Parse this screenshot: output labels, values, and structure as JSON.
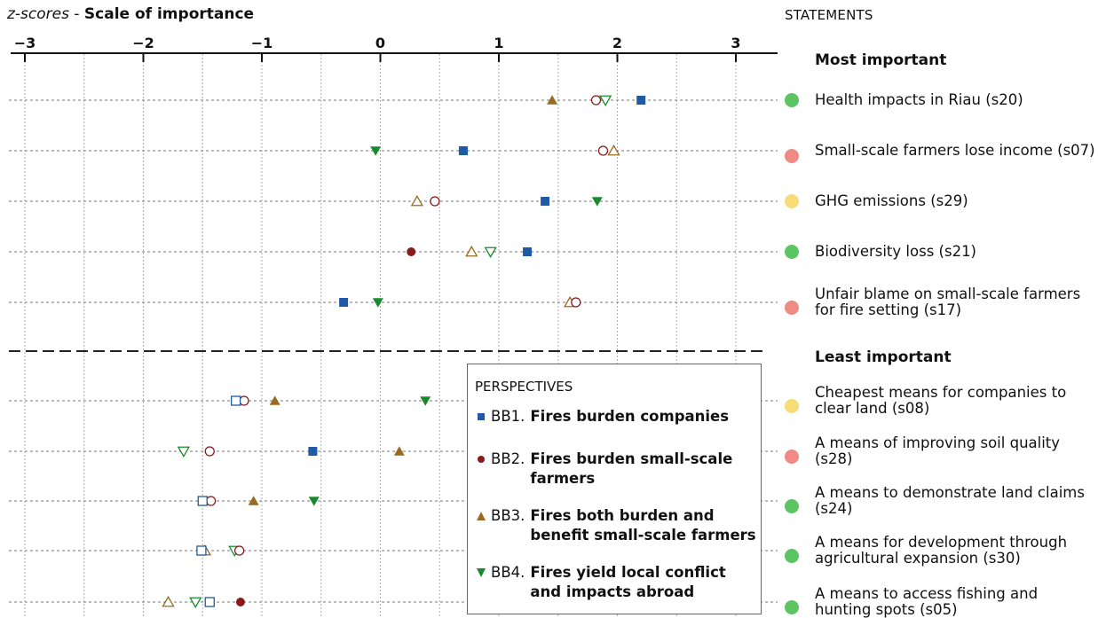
{
  "header": {
    "title_italic": "z-scores",
    "title_sep": " - ",
    "title_bold": "Scale of importance",
    "statements_label": "STATEMENTS"
  },
  "sections": {
    "most": "Most important",
    "least": "Least important"
  },
  "legend": {
    "title": "PERSPECTIVES",
    "items": [
      {
        "code": "BB1.",
        "name": "Fires burden companies",
        "color": "#1f5aa6",
        "marker": "square"
      },
      {
        "code": "BB2.",
        "name": "Fires burden small-scale farmers",
        "color": "#8b1a1a",
        "marker": "circle"
      },
      {
        "code": "BB3.",
        "name": "Fires both burden and benefit small-scale farmers",
        "color": "#9a6a1f",
        "marker": "triangle-up"
      },
      {
        "code": "BB4.",
        "name": "Fires yield local conflict and impacts abroad",
        "color": "#1a8a2e",
        "marker": "triangle-down"
      }
    ]
  },
  "status_colors": {
    "green": "#5cc462",
    "pink": "#f08a84",
    "yellow": "#f7dc78"
  },
  "chart_data": {
    "type": "scatter",
    "xlabel": "z-scores - Scale of importance",
    "xlim": [
      -3.1,
      3.3
    ],
    "ticks": [
      -3,
      -2,
      -1,
      0,
      1,
      2,
      3
    ],
    "tick_labels": [
      "−3",
      "−2",
      "−1",
      "0",
      "1",
      "2",
      "3"
    ],
    "grid": true,
    "legend_position": "bottom-center",
    "statements": [
      {
        "label": "Health impacts in Riau (s20)",
        "group": "most",
        "status": "green",
        "values": {
          "BB1": {
            "v": 2.2,
            "filled": true
          },
          "BB2": {
            "v": 1.82,
            "filled": false
          },
          "BB3": {
            "v": 1.45,
            "filled": true
          },
          "BB4": {
            "v": 1.9,
            "filled": false
          }
        }
      },
      {
        "label": "Small-scale farmers lose income (s07)",
        "group": "most",
        "status": "pink",
        "values": {
          "BB1": {
            "v": 0.7,
            "filled": true
          },
          "BB2": {
            "v": 1.88,
            "filled": false
          },
          "BB3": {
            "v": 1.97,
            "filled": false
          },
          "BB4": {
            "v": -0.04,
            "filled": true
          }
        }
      },
      {
        "label": "GHG emissions (s29)",
        "group": "most",
        "status": "yellow",
        "values": {
          "BB1": {
            "v": 1.39,
            "filled": true
          },
          "BB2": {
            "v": 0.46,
            "filled": false
          },
          "BB3": {
            "v": 0.31,
            "filled": false
          },
          "BB4": {
            "v": 1.83,
            "filled": true
          }
        }
      },
      {
        "label": "Biodiversity loss (s21)",
        "group": "most",
        "status": "green",
        "values": {
          "BB1": {
            "v": 1.24,
            "filled": true
          },
          "BB2": {
            "v": 0.26,
            "filled": true
          },
          "BB3": {
            "v": 0.77,
            "filled": false
          },
          "BB4": {
            "v": 0.93,
            "filled": false
          }
        }
      },
      {
        "label": "Unfair blame on small-scale farmers for fire setting (s17)",
        "group": "most",
        "status": "pink",
        "values": {
          "BB1": {
            "v": -0.31,
            "filled": true
          },
          "BB2": {
            "v": 1.65,
            "filled": false
          },
          "BB3": {
            "v": 1.6,
            "filled": false
          },
          "BB4": {
            "v": -0.02,
            "filled": true
          }
        }
      },
      {
        "label": "Cheapest means for companies to clear land (s08)",
        "group": "least",
        "status": "yellow",
        "values": {
          "BB1": {
            "v": -1.22,
            "filled": false
          },
          "BB2": {
            "v": -1.15,
            "filled": false
          },
          "BB3": {
            "v": -0.89,
            "filled": true
          },
          "BB4": {
            "v": 0.38,
            "filled": true
          }
        }
      },
      {
        "label": "A means of improving soil quality (s28)",
        "group": "least",
        "status": "pink",
        "values": {
          "BB1": {
            "v": -0.57,
            "filled": true
          },
          "BB2": {
            "v": -1.44,
            "filled": false
          },
          "BB3": {
            "v": 0.16,
            "filled": true
          },
          "BB4": {
            "v": -1.66,
            "filled": false
          }
        }
      },
      {
        "label": "A means to demonstrate land claims (s24)",
        "group": "least",
        "status": "green",
        "values": {
          "BB1": {
            "v": -1.5,
            "filled": false
          },
          "BB2": {
            "v": -1.43,
            "filled": false
          },
          "BB3": {
            "v": -1.07,
            "filled": true
          },
          "BB4": {
            "v": -0.56,
            "filled": true
          }
        }
      },
      {
        "label": "A means for development through agricultural expansion (s30)",
        "group": "least",
        "status": "green",
        "values": {
          "BB1": {
            "v": -1.51,
            "filled": false
          },
          "BB2": {
            "v": -1.19,
            "filled": false
          },
          "BB3": {
            "v": -1.48,
            "filled": false
          },
          "BB4": {
            "v": -1.23,
            "filled": false
          }
        }
      },
      {
        "label": "A means to access fishing and hunting spots (s05)",
        "group": "least",
        "status": "green",
        "values": {
          "BB1": {
            "v": -1.44,
            "filled": false
          },
          "BB2": {
            "v": -1.18,
            "filled": true
          },
          "BB3": {
            "v": -1.79,
            "filled": false
          },
          "BB4": {
            "v": -1.56,
            "filled": false
          }
        }
      }
    ]
  }
}
